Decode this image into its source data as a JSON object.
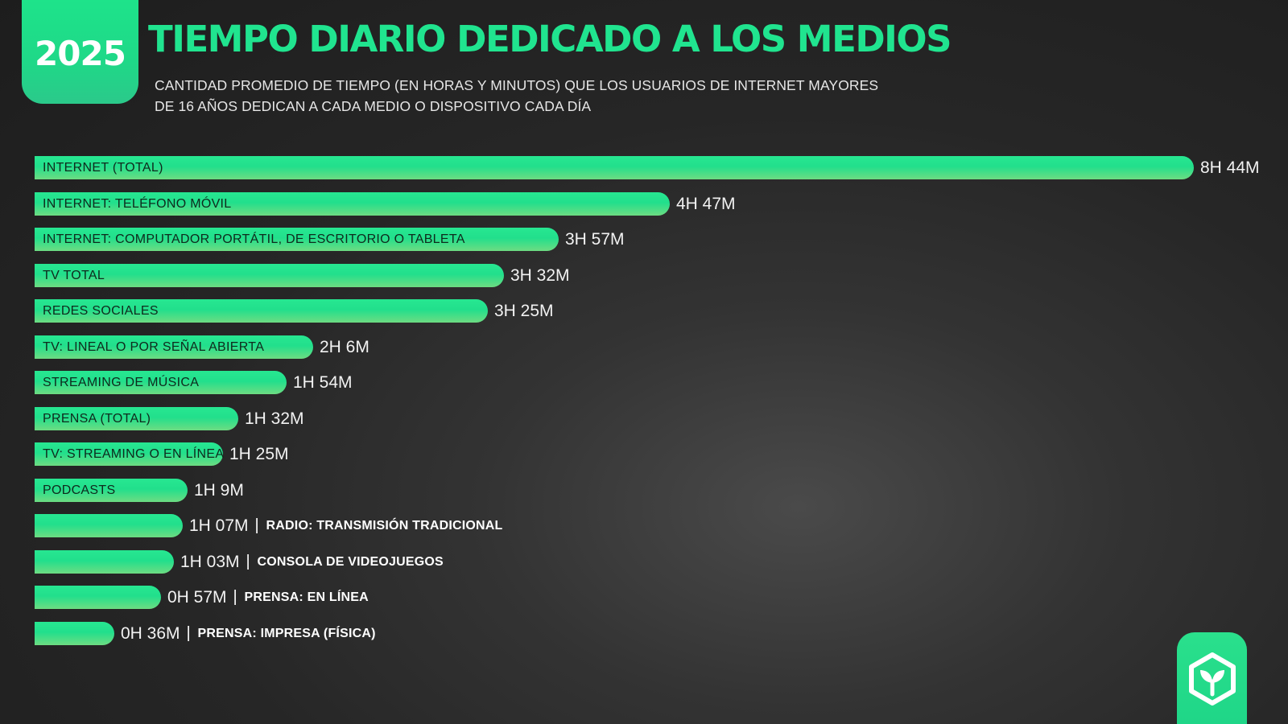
{
  "header": {
    "year": "2025",
    "title": "TIEMPO DIARIO DEDICADO A LOS MEDIOS",
    "subtitle": "CANTIDAD PROMEDIO DE TIEMPO (EN HORAS Y MINUTOS) QUE LOS USUARIOS DE INTERNET MAYORES DE 16 AÑOS DEDICAN A CADA MEDIO O DISPOSITIVO CADA DÍA"
  },
  "colors": {
    "accent": "#20e48f",
    "bar_top": "#27e791",
    "bar_bottom": "#6ddc82",
    "background": "#262626"
  },
  "logo": {
    "icon": "hexagon-sprout-icon"
  },
  "chart_data": {
    "type": "bar",
    "orientation": "horizontal",
    "title": "TIEMPO DIARIO DEDICADO A LOS MEDIOS",
    "categories": [
      "INTERNET (TOTAL)",
      "INTERNET: TELÉFONO MÓVIL",
      "INTERNET: COMPUTADOR PORTÁTIL, DE ESCRITORIO O TABLETA",
      "TV TOTAL",
      "REDES SOCIALES",
      "TV: LINEAL O POR SEÑAL ABIERTA",
      "STREAMING DE MÚSICA",
      "PRENSA (TOTAL)",
      "TV: STREAMING O EN LÍNEA",
      "PODCASTS",
      "RADIO: TRANSMISIÓN TRADICIONAL",
      "CONSOLA DE VIDEOJUEGOS",
      "PRENSA: EN LÍNEA",
      "PRENSA: IMPRESA (FÍSICA)"
    ],
    "values_minutes": [
      524,
      287,
      237,
      212,
      205,
      126,
      114,
      92,
      85,
      69,
      67,
      63,
      57,
      36
    ],
    "value_labels": [
      "8H 44M",
      "4H 47M",
      "3H 57M",
      "3H 32M",
      "3H 25M",
      "2H 6M",
      "1H 54M",
      "1H 32M",
      "1H 25M",
      "1H 9M",
      "1H 07M",
      "1H 03M",
      "0H 57M",
      "0H 36M"
    ],
    "label_outside_bar": [
      false,
      false,
      false,
      false,
      false,
      false,
      false,
      false,
      false,
      false,
      true,
      true,
      true,
      true
    ],
    "separator": "|",
    "xlabel": "",
    "ylabel": "",
    "grid": false,
    "legend": "none"
  }
}
